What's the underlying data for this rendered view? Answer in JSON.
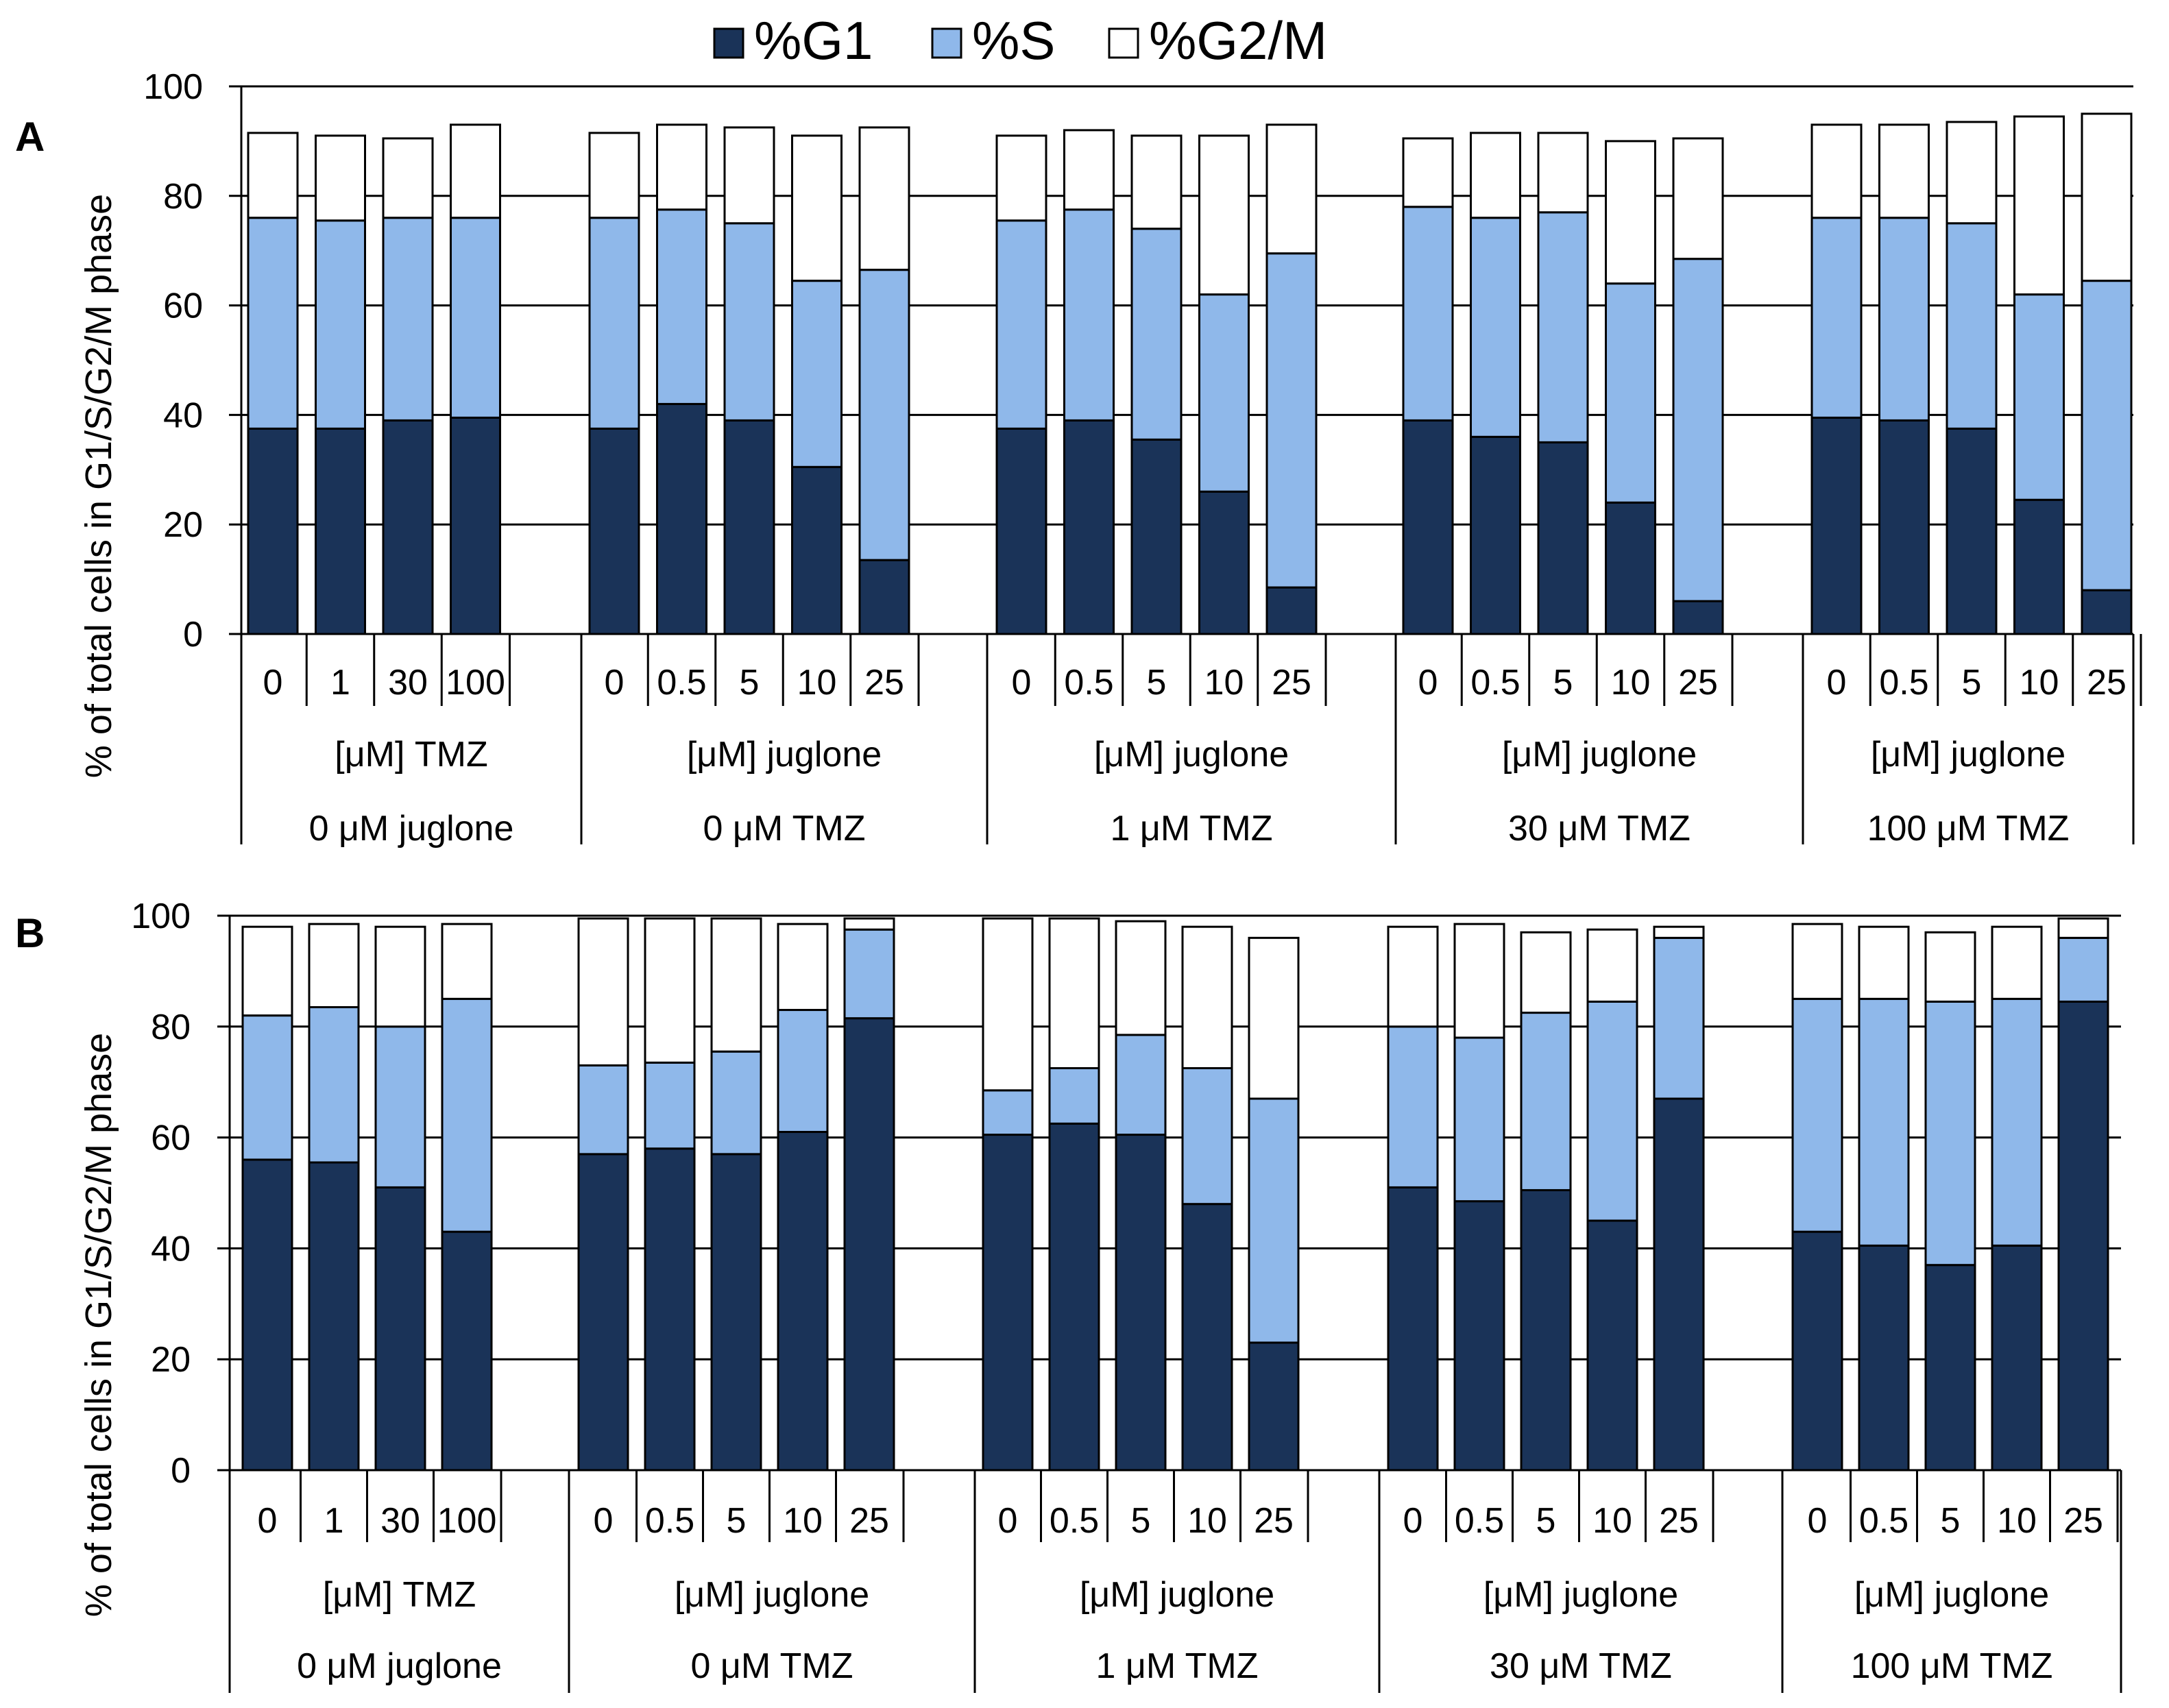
{
  "legend": {
    "items": [
      {
        "key": "g1",
        "label": "%G1"
      },
      {
        "key": "s",
        "label": "%S"
      },
      {
        "key": "g2m",
        "label": "%G2/M"
      }
    ]
  },
  "colors": {
    "g1": "#1a3358",
    "s": "#8fb8ea",
    "g2m": "#ffffff",
    "gridline": "#000000",
    "outline": "#000000"
  },
  "chart_data": [
    {
      "panel_label": "A",
      "type": "bar",
      "stacked": true,
      "ylabel": "% of total cells in G1/S/G2/M  phase",
      "ylim": [
        0,
        100
      ],
      "yticks": [
        "0",
        "20",
        "40",
        "60",
        "80",
        "100"
      ],
      "series_names": [
        "%G1",
        "%S",
        "%G2/M"
      ],
      "groups": [
        {
          "sub_label": "[μM]  TMZ",
          "label": "0 μM  juglone",
          "categories": [
            "0",
            "1",
            "30",
            "100"
          ],
          "g1": [
            37.5,
            37.5,
            39,
            39.5
          ],
          "s": [
            38.5,
            38,
            37,
            36.5
          ],
          "g2m": [
            15.5,
            15.5,
            14.5,
            17
          ]
        },
        {
          "sub_label": "[μM]  juglone",
          "label": "0 μM  TMZ",
          "categories": [
            "0",
            "0.5",
            "5",
            "10",
            "25"
          ],
          "g1": [
            37.5,
            42,
            39,
            30.5,
            13.5
          ],
          "s": [
            38.5,
            35.5,
            36,
            34,
            53
          ],
          "g2m": [
            15.5,
            15.5,
            17.5,
            26.5,
            26
          ]
        },
        {
          "sub_label": "[μM]  juglone",
          "label": "1 μM  TMZ",
          "categories": [
            "0",
            "0.5",
            "5",
            "10",
            "25"
          ],
          "g1": [
            37.5,
            39,
            35.5,
            26,
            8.5
          ],
          "s": [
            38,
            38.5,
            38.5,
            36,
            61
          ],
          "g2m": [
            15.5,
            14.5,
            17,
            29,
            23.5
          ]
        },
        {
          "sub_label": "[μM]  juglone",
          "label": "30 μM  TMZ",
          "categories": [
            "0",
            "0.5",
            "5",
            "10",
            "25"
          ],
          "g1": [
            39,
            36,
            35,
            24,
            6
          ],
          "s": [
            39,
            40,
            42,
            40,
            62.5
          ],
          "g2m": [
            12.5,
            15.5,
            14.5,
            26,
            22
          ]
        },
        {
          "sub_label": "[μM]  juglone",
          "label": "100 μM  TMZ",
          "categories": [
            "0",
            "0.5",
            "5",
            "10",
            "25"
          ],
          "g1": [
            39.5,
            39,
            37.5,
            24.5,
            8
          ],
          "s": [
            36.5,
            37,
            37.5,
            37.5,
            56.5
          ],
          "g2m": [
            17,
            17,
            18.5,
            32.5,
            30.5
          ]
        }
      ]
    },
    {
      "panel_label": "B",
      "type": "bar",
      "stacked": true,
      "ylabel": "% of total cells in G1/S/G2/M  phase",
      "ylim": [
        0,
        100
      ],
      "yticks": [
        "0",
        "20",
        "40",
        "60",
        "80",
        "100"
      ],
      "series_names": [
        "%G1",
        "%S",
        "%G2/M"
      ],
      "groups": [
        {
          "sub_label": "[μM]  TMZ",
          "label": "0 μM  juglone",
          "categories": [
            "0",
            "1",
            "30",
            "100"
          ],
          "g1": [
            56,
            55.5,
            51,
            43
          ],
          "s": [
            26,
            28,
            29,
            42
          ],
          "g2m": [
            16,
            15,
            18,
            13.5
          ]
        },
        {
          "sub_label": "[μM]  juglone",
          "label": "0 μM  TMZ",
          "categories": [
            "0",
            "0.5",
            "5",
            "10",
            "25"
          ],
          "g1": [
            57,
            58,
            57,
            61,
            81.5
          ],
          "s": [
            16,
            15.5,
            18.5,
            22,
            16
          ],
          "g2m": [
            26.5,
            26,
            24,
            15.5,
            2
          ]
        },
        {
          "sub_label": "[μM]  juglone",
          "label": "1 μM  TMZ",
          "categories": [
            "0",
            "0.5",
            "5",
            "10",
            "25"
          ],
          "g1": [
            60.5,
            62.5,
            60.5,
            48,
            23
          ],
          "s": [
            8,
            10,
            18,
            24.5,
            44
          ],
          "g2m": [
            31,
            27,
            20.5,
            25.5,
            29
          ]
        },
        {
          "sub_label": "[μM]  juglone",
          "label": "30 μM  TMZ",
          "categories": [
            "0",
            "0.5",
            "5",
            "10",
            "25"
          ],
          "g1": [
            51,
            48.5,
            50.5,
            45,
            67
          ],
          "s": [
            29,
            29.5,
            32,
            39.5,
            29
          ],
          "g2m": [
            18,
            20.5,
            14.5,
            13,
            2
          ]
        },
        {
          "sub_label": "[μM]  juglone",
          "label": "100 μM  TMZ",
          "categories": [
            "0",
            "0.5",
            "5",
            "10",
            "25"
          ],
          "g1": [
            43,
            40.5,
            37,
            40.5,
            84.5
          ],
          "s": [
            42,
            44.5,
            47.5,
            44.5,
            11.5
          ],
          "g2m": [
            13.5,
            13,
            12.5,
            13,
            3.5
          ]
        }
      ]
    }
  ]
}
